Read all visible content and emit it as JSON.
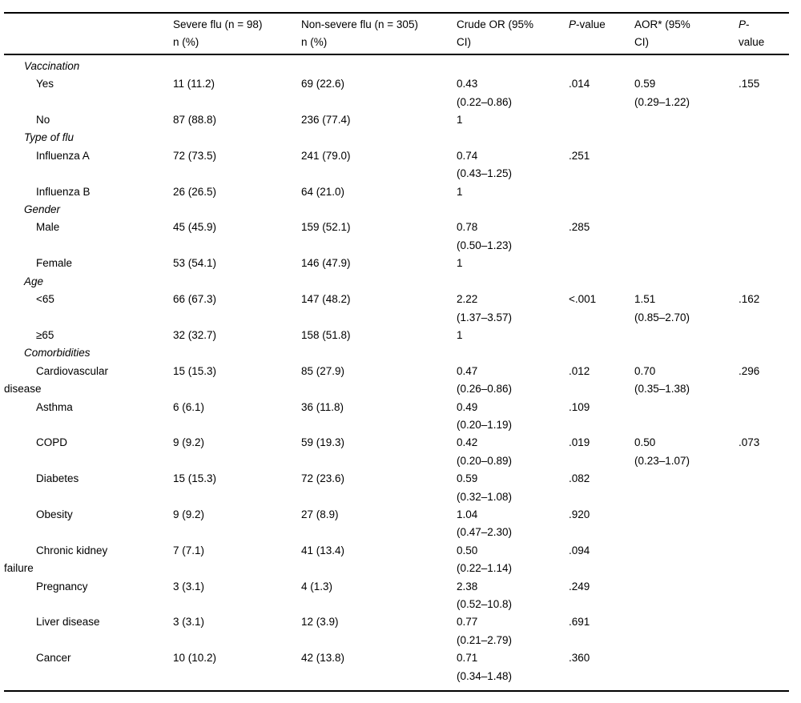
{
  "table": {
    "headers": [
      {
        "name": "col-header-category",
        "text": ""
      },
      {
        "name": "col-header-severe-flu",
        "text": "Severe flu (n = 98)\nn (%)"
      },
      {
        "name": "col-header-non-severe-flu",
        "text": "Non-severe flu (n = 305)\nn (%)"
      },
      {
        "name": "col-header-crude-or",
        "text": "Crude OR (95%\nCI)"
      },
      {
        "name": "col-header-p-value-crude",
        "text": "*P*-value"
      },
      {
        "name": "col-header-aor",
        "text": "AOR* (95%\nCI)"
      },
      {
        "name": "col-header-p-value-adjusted",
        "text": "*P*-\nvalue"
      }
    ],
    "rows": [
      {
        "type": "section",
        "label": "Vaccination"
      },
      {
        "type": "data",
        "label": "Yes",
        "severe": "11 (11.2)",
        "non_severe": "69 (22.6)",
        "crude_or": "0.43\n(0.22–0.86)",
        "p_crude": ".014",
        "aor": "0.59\n(0.29–1.22)",
        "p_adjusted": ".155"
      },
      {
        "type": "data",
        "label": "No",
        "severe": "87 (88.8)",
        "non_severe": "236 (77.4)",
        "crude_or": "1",
        "p_crude": "",
        "aor": "",
        "p_adjusted": ""
      },
      {
        "type": "section",
        "label": "Type of flu"
      },
      {
        "type": "data",
        "label": "Influenza A",
        "severe": "72 (73.5)",
        "non_severe": "241 (79.0)",
        "crude_or": "0.74\n(0.43–1.25)",
        "p_crude": ".251",
        "aor": "",
        "p_adjusted": ""
      },
      {
        "type": "data",
        "label": "Influenza B",
        "severe": "26 (26.5)",
        "non_severe": "64 (21.0)",
        "crude_or": "1",
        "p_crude": "",
        "aor": "",
        "p_adjusted": ""
      },
      {
        "type": "section",
        "label": "Gender"
      },
      {
        "type": "data",
        "label": "Male",
        "severe": "45 (45.9)",
        "non_severe": "159 (52.1)",
        "crude_or": "0.78\n(0.50–1.23)",
        "p_crude": ".285",
        "aor": "",
        "p_adjusted": ""
      },
      {
        "type": "data",
        "label": "Female",
        "severe": "53 (54.1)",
        "non_severe": "146 (47.9)",
        "crude_or": "1",
        "p_crude": "",
        "aor": "",
        "p_adjusted": ""
      },
      {
        "type": "section",
        "label": "Age"
      },
      {
        "type": "data",
        "label": "<65",
        "severe": "66 (67.3)",
        "non_severe": "147 (48.2)",
        "crude_or": "2.22\n(1.37–3.57)",
        "p_crude": "<.001",
        "aor": "1.51\n(0.85–2.70)",
        "p_adjusted": ".162"
      },
      {
        "type": "data",
        "label": "≥65",
        "severe": "32 (32.7)",
        "non_severe": "158 (51.8)",
        "crude_or": "1",
        "p_crude": "",
        "aor": "",
        "p_adjusted": ""
      },
      {
        "type": "section",
        "label": "Comorbidities"
      },
      {
        "type": "data",
        "label": "Cardiovascular\ndisease",
        "severe": "15 (15.3)",
        "non_severe": "85 (27.9)",
        "crude_or": "0.47\n(0.26–0.86)",
        "p_crude": ".012",
        "aor": "0.70\n(0.35–1.38)",
        "p_adjusted": ".296"
      },
      {
        "type": "data",
        "label": "Asthma",
        "severe": "6 (6.1)",
        "non_severe": "36 (11.8)",
        "crude_or": "0.49\n(0.20–1.19)",
        "p_crude": ".109",
        "aor": "",
        "p_adjusted": ""
      },
      {
        "type": "data",
        "label": "COPD",
        "severe": "9 (9.2)",
        "non_severe": "59 (19.3)",
        "crude_or": "0.42\n(0.20–0.89)",
        "p_crude": ".019",
        "aor": "0.50\n(0.23–1.07)",
        "p_adjusted": ".073"
      },
      {
        "type": "data",
        "label": "Diabetes",
        "severe": "15 (15.3)",
        "non_severe": "72 (23.6)",
        "crude_or": "0.59\n(0.32–1.08)",
        "p_crude": ".082",
        "aor": "",
        "p_adjusted": ""
      },
      {
        "type": "data",
        "label": "Obesity",
        "severe": "9 (9.2)",
        "non_severe": "27 (8.9)",
        "crude_or": "1.04\n(0.47–2.30)",
        "p_crude": ".920",
        "aor": "",
        "p_adjusted": ""
      },
      {
        "type": "data",
        "label": "Chronic kidney\nfailure",
        "severe": "7 (7.1)",
        "non_severe": "41 (13.4)",
        "crude_or": "0.50\n(0.22–1.14)",
        "p_crude": ".094",
        "aor": "",
        "p_adjusted": ""
      },
      {
        "type": "data",
        "label": "Pregnancy",
        "severe": "3 (3.1)",
        "non_severe": "4 (1.3)",
        "crude_or": "2.38\n(0.52–10.8)",
        "p_crude": ".249",
        "aor": "",
        "p_adjusted": ""
      },
      {
        "type": "data",
        "label": "Liver disease",
        "severe": "3 (3.1)",
        "non_severe": "12 (3.9)",
        "crude_or": "0.77\n(0.21–2.79)",
        "p_crude": ".691",
        "aor": "",
        "p_adjusted": ""
      },
      {
        "type": "data",
        "label": "Cancer",
        "severe": "10 (10.2)",
        "non_severe": "42 (13.8)",
        "crude_or": "0.71\n(0.34–1.48)",
        "p_crude": ".360",
        "aor": "",
        "p_adjusted": ""
      }
    ]
  }
}
